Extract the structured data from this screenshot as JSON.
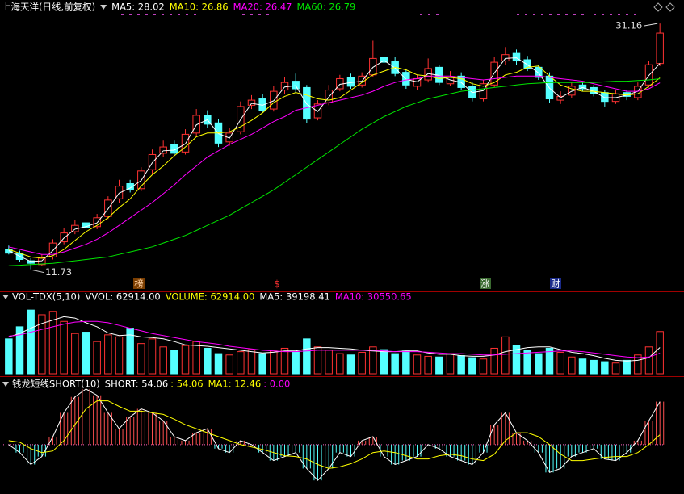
{
  "chart_data": [
    {
      "type": "candlestick",
      "title": "上海天洋(日线,前复权)",
      "categories": [
        null,
        null,
        null,
        null,
        null,
        null,
        null,
        null,
        null,
        null,
        null,
        null,
        null,
        null,
        null,
        null,
        null,
        null,
        null,
        null,
        null,
        null,
        null,
        null,
        null,
        null,
        null,
        null,
        null,
        null,
        null,
        null,
        null,
        null,
        null,
        null,
        null,
        null,
        null,
        null,
        null,
        null,
        null,
        null,
        null,
        null,
        null,
        null,
        null,
        null,
        null,
        null,
        null,
        null,
        null,
        null,
        null,
        null,
        null,
        null
      ],
      "open": [
        13.3,
        13.0,
        12.4,
        12.1,
        12.7,
        13.9,
        14.7,
        15.4,
        15.1,
        15.9,
        17.3,
        18.5,
        18.1,
        19.6,
        20.9,
        21.6,
        21.0,
        22.5,
        23.9,
        23.3,
        21.8,
        22.6,
        24.7,
        25.2,
        24.4,
        25.9,
        26.6,
        26.1,
        23.7,
        24.9,
        26.0,
        26.9,
        26.3,
        27.1,
        28.5,
        28.2,
        27.3,
        26.2,
        26.7,
        27.7,
        26.4,
        27.0,
        26.2,
        25.2,
        26.3,
        28.2,
        28.8,
        28.3,
        27.7,
        27.0,
        25.1,
        25.5,
        26.3,
        26.1,
        25.7,
        25.0,
        25.7,
        25.3,
        26.3,
        28.0
      ],
      "high": [
        13.6,
        13.2,
        12.6,
        12.9,
        14.1,
        15.0,
        15.6,
        15.8,
        16.1,
        17.5,
        18.8,
        18.8,
        19.8,
        21.2,
        21.9,
        21.9,
        22.8,
        24.4,
        24.3,
        23.6,
        22.9,
        25.0,
        25.5,
        25.6,
        26.2,
        26.9,
        27.2,
        26.3,
        25.1,
        26.3,
        27.1,
        27.2,
        27.3,
        29.8,
        28.9,
        28.5,
        27.6,
        27.1,
        28.4,
        27.9,
        27.4,
        27.3,
        26.5,
        26.7,
        28.5,
        29.3,
        29.1,
        28.6,
        27.9,
        27.3,
        25.8,
        26.5,
        26.6,
        26.3,
        25.9,
        25.9,
        25.9,
        26.5,
        28.2,
        31.16
      ],
      "low": [
        12.9,
        12.3,
        11.73,
        12.0,
        12.5,
        13.7,
        14.5,
        14.8,
        14.9,
        15.7,
        17.0,
        17.8,
        17.9,
        19.3,
        20.6,
        20.7,
        20.8,
        22.2,
        22.9,
        21.4,
        21.5,
        22.4,
        24.4,
        24.1,
        24.2,
        25.6,
        25.7,
        23.3,
        23.5,
        24.7,
        25.8,
        26.0,
        26.1,
        26.9,
        27.8,
        27.0,
        26.0,
        25.9,
        26.5,
        26.3,
        26.2,
        25.9,
        25.0,
        25.0,
        26.1,
        27.9,
        27.9,
        27.4,
        26.7,
        24.9,
        24.8,
        25.3,
        25.8,
        25.4,
        24.6,
        24.8,
        25.1,
        25.1,
        26.1,
        27.8
      ],
      "close": [
        13.0,
        12.5,
        12.2,
        12.6,
        13.8,
        14.6,
        15.2,
        15.0,
        15.8,
        17.2,
        18.3,
        18.0,
        19.5,
        20.8,
        21.4,
        20.9,
        22.4,
        23.9,
        23.2,
        21.7,
        22.5,
        24.6,
        25.1,
        24.3,
        25.8,
        26.5,
        26.0,
        23.6,
        24.8,
        25.9,
        26.8,
        26.2,
        27.0,
        28.4,
        28.1,
        27.2,
        26.3,
        26.8,
        27.6,
        26.5,
        26.9,
        26.1,
        25.3,
        26.4,
        28.1,
        28.7,
        28.2,
        27.6,
        26.9,
        25.2,
        25.4,
        26.2,
        26.0,
        25.6,
        25.0,
        25.6,
        25.4,
        26.2,
        27.9,
        30.4
      ],
      "up_color": "#ff3232",
      "down_color": "#54ffff",
      "ylim": [
        11,
        32
      ],
      "series": [
        {
          "name": "MA5: 28.02",
          "color": "#ffffff",
          "style": "line",
          "values": [
            13.2,
            12.75,
            12.35,
            12.4,
            13.2,
            14.2,
            14.9,
            15.1,
            15.4,
            16.5,
            17.75,
            18.15,
            18.75,
            20.15,
            21.1,
            21.15,
            21.65,
            23.15,
            23.55,
            22.45,
            22.1,
            23.55,
            24.85,
            24.7,
            25.05,
            26.15,
            26.25,
            24.8,
            24.2,
            25.35,
            26.35,
            26.5,
            26.6,
            27.7,
            28.25,
            27.65,
            26.75,
            26.55,
            27.2,
            27.05,
            26.7,
            26.5,
            25.7,
            25.85,
            27.25,
            28.4,
            28.45,
            27.9,
            27.25,
            26.05,
            25.3,
            25.8,
            26.1,
            25.8,
            25.3,
            25.3,
            25.5,
            25.8,
            27.05,
            28.02
          ]
        },
        {
          "name": "MA10: 26.86",
          "color": "#ffff00",
          "style": "line",
          "values": [
            13.3,
            13.0,
            12.7,
            12.6,
            12.8,
            13.3,
            14.0,
            14.7,
            15.2,
            15.8,
            16.6,
            17.3,
            18.3,
            19.2,
            19.9,
            20.7,
            21.4,
            22.2,
            22.5,
            22.5,
            22.6,
            23.0,
            23.5,
            24.1,
            24.9,
            25.4,
            25.7,
            25.5,
            25.2,
            25.1,
            25.3,
            25.9,
            26.5,
            27.1,
            27.4,
            27.7,
            27.5,
            27.1,
            27.0,
            26.8,
            26.9,
            26.8,
            26.4,
            26.2,
            26.5,
            27.1,
            27.3,
            27.7,
            27.8,
            27.0,
            26.3,
            26.0,
            25.8,
            25.8,
            25.7,
            25.6,
            25.5,
            25.6,
            26.2,
            26.86
          ]
        },
        {
          "name": "MA20: 26.47",
          "color": "#ff00ff",
          "style": "line",
          "values": [
            13.5,
            13.3,
            13.1,
            12.9,
            12.9,
            13.1,
            13.4,
            13.7,
            14.1,
            14.6,
            15.2,
            15.8,
            16.4,
            17.0,
            17.7,
            18.4,
            19.2,
            19.9,
            20.6,
            21.1,
            21.6,
            22.0,
            22.4,
            22.9,
            23.4,
            23.8,
            24.3,
            24.5,
            24.7,
            24.9,
            25.1,
            25.3,
            25.5,
            25.8,
            26.2,
            26.5,
            26.7,
            26.8,
            27.0,
            27.0,
            27.0,
            26.9,
            26.8,
            26.7,
            26.8,
            26.9,
            27.0,
            27.0,
            27.0,
            26.9,
            26.8,
            26.7,
            26.6,
            26.4,
            26.2,
            26.0,
            25.8,
            25.8,
            26.0,
            26.47
          ]
        },
        {
          "name": "MA60: 26.79",
          "color": "#00e600",
          "style": "line",
          "values": [
            12.0,
            12.05,
            12.1,
            12.15,
            12.2,
            12.3,
            12.4,
            12.5,
            12.6,
            12.7,
            12.9,
            13.1,
            13.3,
            13.5,
            13.8,
            14.1,
            14.4,
            14.8,
            15.2,
            15.6,
            16.0,
            16.5,
            17.0,
            17.5,
            18.0,
            18.6,
            19.2,
            19.8,
            20.4,
            21.0,
            21.6,
            22.2,
            22.8,
            23.3,
            23.8,
            24.2,
            24.6,
            24.9,
            25.2,
            25.4,
            25.6,
            25.8,
            25.9,
            26.0,
            26.1,
            26.2,
            26.3,
            26.4,
            26.45,
            26.5,
            26.5,
            26.5,
            26.5,
            26.5,
            26.55,
            26.6,
            26.6,
            26.65,
            26.7,
            26.79
          ]
        }
      ],
      "events": [
        "榜",
        "$",
        "涨",
        "财"
      ]
    },
    {
      "type": "bar",
      "title": "VOL-TDX(5,10)",
      "subtitle": "VVOL: 62914.00",
      "ylim": [
        0,
        100000
      ],
      "series": [
        {
          "name": "VOLUME: 62914.00",
          "color": "#ffff00",
          "style": "bar",
          "values": [
            52000,
            70000,
            95000,
            88000,
            93000,
            78000,
            60000,
            62000,
            48000,
            58000,
            55000,
            68000,
            45000,
            52000,
            40000,
            35000,
            42000,
            48000,
            38000,
            30000,
            28000,
            33000,
            36000,
            30000,
            34000,
            38000,
            32000,
            52000,
            40000,
            35000,
            30000,
            28000,
            32000,
            40000,
            36000,
            30000,
            34000,
            28000,
            26000,
            25000,
            30000,
            27000,
            24000,
            22000,
            38000,
            55000,
            42000,
            35000,
            30000,
            38000,
            32000,
            25000,
            22000,
            20000,
            18000,
            16000,
            20000,
            28000,
            40000,
            62914
          ]
        },
        {
          "name": "MA5: 39198.41",
          "color": "#ffffff",
          "style": "line",
          "values": [
            55000,
            60000,
            68000,
            75000,
            80000,
            85000,
            83000,
            76000,
            70000,
            61000,
            57000,
            58000,
            55000,
            54000,
            52000,
            48000,
            43000,
            42000,
            41000,
            39000,
            37000,
            35000,
            33000,
            31000,
            32000,
            34000,
            34000,
            37000,
            39000,
            39000,
            38000,
            37000,
            35000,
            34000,
            33000,
            33000,
            34000,
            34000,
            31000,
            29000,
            29000,
            27000,
            26000,
            26000,
            28000,
            33000,
            36000,
            39000,
            40000,
            40000,
            36000,
            32000,
            30000,
            27000,
            23000,
            20000,
            19000,
            20000,
            24000,
            39198.41
          ]
        },
        {
          "name": "MA10: 30550.65",
          "color": "#ff00ff",
          "style": "line",
          "values": [
            56000,
            58000,
            62000,
            66000,
            70000,
            74000,
            77000,
            78000,
            78000,
            76000,
            72000,
            68000,
            64000,
            60000,
            57000,
            54000,
            51000,
            48000,
            46000,
            44000,
            41000,
            39000,
            37000,
            35000,
            34000,
            33000,
            33000,
            34000,
            35000,
            35000,
            35000,
            35000,
            35000,
            35000,
            34000,
            33000,
            33000,
            33000,
            32000,
            31000,
            30000,
            30000,
            29000,
            28000,
            28000,
            29000,
            30000,
            31000,
            32000,
            33000,
            34000,
            34000,
            33000,
            31000,
            29000,
            27000,
            25000,
            24000,
            25000,
            30550.65
          ]
        }
      ]
    },
    {
      "type": "bar",
      "title": "钱龙短线SHORT(10)",
      "ylim": [
        -58,
        80
      ],
      "series": [
        {
          "name": "SHORT: 54.06",
          "color": "#ffffff",
          "style": "bar-line",
          "note": ": 54.06",
          "note_color": "#ffff00",
          "values": [
            0,
            -10,
            -25,
            -15,
            10,
            40,
            60,
            70,
            62,
            40,
            20,
            35,
            45,
            40,
            30,
            10,
            5,
            15,
            20,
            -5,
            -10,
            5,
            0,
            -10,
            -20,
            -15,
            -10,
            -30,
            -45,
            -30,
            -10,
            -15,
            5,
            10,
            -15,
            -25,
            -20,
            -15,
            0,
            -5,
            -15,
            -20,
            -25,
            -10,
            25,
            40,
            15,
            5,
            -10,
            -35,
            -30,
            -15,
            -10,
            -5,
            -18,
            -20,
            -10,
            5,
            30,
            54.06
          ]
        },
        {
          "name": "MA1: 12.46",
          "color": "#ffff00",
          "style": "line",
          "note": ": 0.00",
          "note_color": "#ff00ff",
          "values": [
            5,
            3,
            -5,
            -10,
            -8,
            5,
            25,
            45,
            55,
            55,
            48,
            42,
            42,
            40,
            38,
            32,
            25,
            20,
            15,
            10,
            5,
            0,
            -3,
            -6,
            -10,
            -14,
            -15,
            -18,
            -25,
            -30,
            -28,
            -24,
            -18,
            -10,
            -8,
            -10,
            -14,
            -18,
            -18,
            -14,
            -12,
            -14,
            -18,
            -20,
            -12,
            5,
            15,
            15,
            10,
            0,
            -12,
            -20,
            -20,
            -18,
            -16,
            -15,
            -15,
            -10,
            0,
            12.46
          ]
        }
      ]
    }
  ]
}
